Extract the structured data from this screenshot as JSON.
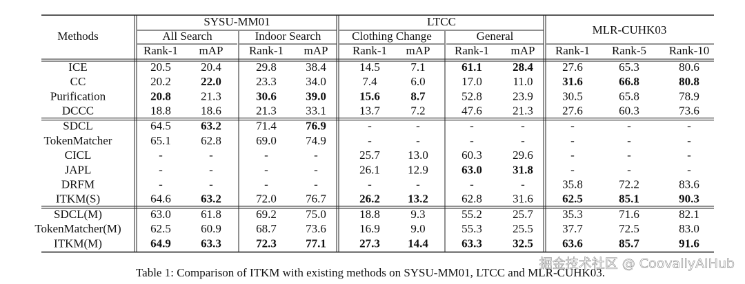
{
  "table": {
    "header": {
      "methods": "Methods",
      "groups": [
        {
          "name": "SYSU-MM01",
          "subgroups": [
            {
              "name": "All Search",
              "metrics": [
                "Rank-1",
                "mAP"
              ]
            },
            {
              "name": "Indoor Search",
              "metrics": [
                "Rank-1",
                "mAP"
              ]
            }
          ]
        },
        {
          "name": "LTCC",
          "subgroups": [
            {
              "name": "Clothing Change",
              "metrics": [
                "Rank-1",
                "mAP"
              ]
            },
            {
              "name": "General",
              "metrics": [
                "Rank-1",
                "mAP"
              ]
            }
          ]
        },
        {
          "name": "MLR-CUHK03",
          "metrics": [
            "Rank-1",
            "Rank-5",
            "Rank-10"
          ]
        }
      ]
    },
    "sections": [
      [
        {
          "method": "ICE",
          "cells": [
            "20.5",
            "20.4",
            "29.8",
            "38.4",
            "14.5",
            "7.1",
            {
              "text": "61.1",
              "bold": true
            },
            {
              "text": "28.4",
              "bold": true
            },
            "27.6",
            "65.3",
            "80.6"
          ]
        },
        {
          "method": "CC",
          "cells": [
            "20.2",
            {
              "text": "22.0",
              "bold": true
            },
            "23.3",
            "34.0",
            "7.4",
            "6.0",
            "17.0",
            "11.0",
            {
              "text": "31.6",
              "bold": true
            },
            {
              "text": "66.8",
              "bold": true
            },
            {
              "text": "80.8",
              "bold": true
            }
          ]
        },
        {
          "method": "Purification",
          "cells": [
            {
              "text": "20.8",
              "bold": true
            },
            "21.3",
            {
              "text": "30.6",
              "bold": true
            },
            {
              "text": "39.0",
              "bold": true
            },
            {
              "text": "15.6",
              "bold": true
            },
            {
              "text": "8.7",
              "bold": true
            },
            "52.8",
            "23.9",
            "30.5",
            "65.8",
            "78.9"
          ]
        },
        {
          "method": "DCCC",
          "cells": [
            "18.8",
            "18.6",
            "21.3",
            "33.1",
            "13.7",
            "7.2",
            "47.6",
            "21.3",
            "27.6",
            "60.3",
            "73.6"
          ]
        }
      ],
      [
        {
          "method": "SDCL",
          "cells": [
            "64.5",
            {
              "text": "63.2",
              "bold": true
            },
            "71.4",
            {
              "text": "76.9",
              "bold": true
            },
            "-",
            "-",
            "-",
            "-",
            "-",
            "-",
            "-"
          ]
        },
        {
          "method": "TokenMatcher",
          "cells": [
            "65.1",
            "62.8",
            "69.0",
            "74.9",
            "-",
            "-",
            "-",
            "-",
            "-",
            "-",
            "-"
          ]
        },
        {
          "method": "CICL",
          "cells": [
            "-",
            "-",
            "-",
            "-",
            "25.7",
            "13.0",
            "60.3",
            "29.6",
            "-",
            "-",
            "-"
          ]
        },
        {
          "method": "JAPL",
          "cells": [
            "-",
            "-",
            "-",
            "-",
            "26.1",
            "12.9",
            {
              "text": "63.0",
              "bold": true
            },
            {
              "text": "31.8",
              "bold": true
            },
            "-",
            "-",
            "-"
          ]
        },
        {
          "method": "DRFM",
          "cells": [
            "-",
            "-",
            "-",
            "-",
            "-",
            "-",
            "-",
            "-",
            "35.8",
            "72.2",
            "83.6"
          ]
        },
        {
          "method": "ITKM(S)",
          "cells": [
            "64.6",
            {
              "text": "63.2",
              "bold": true
            },
            "72.0",
            "76.7",
            {
              "text": "26.2",
              "bold": true
            },
            {
              "text": "13.2",
              "bold": true
            },
            "62.8",
            "31.6",
            {
              "text": "62.5",
              "bold": true
            },
            {
              "text": "85.1",
              "bold": true
            },
            {
              "text": "90.3",
              "bold": true
            }
          ]
        }
      ],
      [
        {
          "method": "SDCL(M)",
          "cells": [
            "63.0",
            "61.8",
            "69.2",
            "75.0",
            "18.8",
            "9.3",
            "55.2",
            "25.7",
            "35.3",
            "71.6",
            "82.1"
          ]
        },
        {
          "method": "TokenMatcher(M)",
          "cells": [
            "62.5",
            "60.9",
            "68.7",
            "73.6",
            "16.9",
            "9.0",
            "55.3",
            "25.5",
            "37.7",
            "72.5",
            "83.0"
          ]
        },
        {
          "method": "ITKM(M)",
          "cells": [
            {
              "text": "64.9",
              "bold": true
            },
            {
              "text": "63.3",
              "bold": true
            },
            {
              "text": "72.3",
              "bold": true
            },
            {
              "text": "77.1",
              "bold": true
            },
            {
              "text": "27.3",
              "bold": true
            },
            {
              "text": "14.4",
              "bold": true
            },
            {
              "text": "63.3",
              "bold": true
            },
            {
              "text": "32.5",
              "bold": true
            },
            {
              "text": "63.6",
              "bold": true
            },
            {
              "text": "85.7",
              "bold": true
            },
            {
              "text": "91.6",
              "bold": true
            }
          ]
        }
      ]
    ],
    "caption": "Table 1: Comparison of ITKM with existing methods on SYSU-MM01, LTCC and MLR-CUHK03.",
    "watermark": "掘金技术社区 @ CoovallyAIHub"
  }
}
